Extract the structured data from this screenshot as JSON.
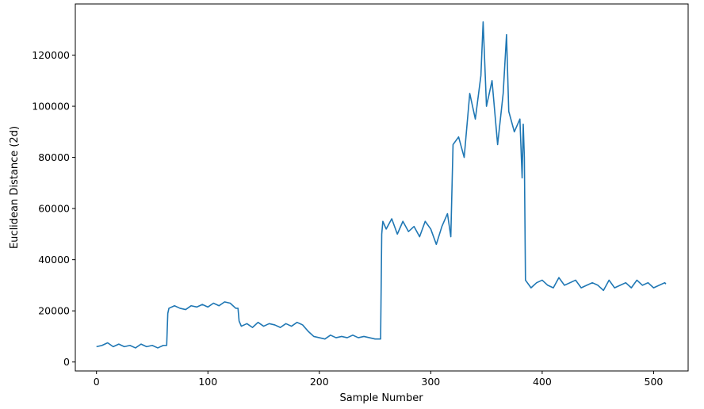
{
  "chart_data": {
    "type": "line",
    "title": "",
    "xlabel": "Sample Number",
    "ylabel": "Euclidean Distance (2d)",
    "xlim": [
      -19,
      531
    ],
    "ylim": [
      -3500,
      140000
    ],
    "xticks": [
      0,
      100,
      200,
      300,
      400,
      500
    ],
    "yticks": [
      0,
      20000,
      40000,
      60000,
      80000,
      100000,
      120000
    ],
    "grid": false,
    "legend": null,
    "series": [
      {
        "color": "#1f77b4",
        "x": [
          0,
          5,
          10,
          15,
          20,
          25,
          30,
          35,
          40,
          45,
          50,
          55,
          60,
          63,
          64,
          65,
          70,
          75,
          80,
          85,
          90,
          95,
          100,
          105,
          110,
          115,
          120,
          125,
          127,
          128,
          130,
          135,
          140,
          145,
          150,
          155,
          160,
          165,
          170,
          175,
          180,
          185,
          190,
          195,
          200,
          205,
          210,
          215,
          220,
          225,
          230,
          235,
          240,
          245,
          250,
          255,
          256,
          257,
          260,
          265,
          270,
          275,
          280,
          285,
          290,
          295,
          300,
          305,
          310,
          315,
          318,
          320,
          325,
          330,
          335,
          340,
          345,
          347,
          350,
          355,
          360,
          365,
          368,
          370,
          375,
          380,
          382,
          383,
          384,
          385,
          390,
          395,
          400,
          405,
          410,
          415,
          420,
          425,
          430,
          435,
          440,
          445,
          450,
          455,
          460,
          465,
          470,
          475,
          480,
          485,
          490,
          495,
          500,
          505,
          510,
          511
        ],
        "values": [
          6000,
          6500,
          7500,
          6000,
          7000,
          6000,
          6500,
          5500,
          7000,
          6000,
          6500,
          5500,
          6500,
          6500,
          19000,
          21000,
          22000,
          21000,
          20500,
          22000,
          21500,
          22500,
          21500,
          23000,
          22000,
          23500,
          23000,
          21000,
          21000,
          16000,
          14000,
          15000,
          13500,
          15500,
          14000,
          15000,
          14500,
          13500,
          15000,
          14000,
          15500,
          14500,
          12000,
          10000,
          9500,
          9000,
          10500,
          9500,
          10000,
          9500,
          10500,
          9500,
          10000,
          9500,
          9000,
          9000,
          50000,
          55000,
          52000,
          56000,
          50000,
          55000,
          51000,
          53000,
          49000,
          55000,
          52000,
          46000,
          53000,
          58000,
          49000,
          85000,
          88000,
          80000,
          105000,
          95000,
          112000,
          133000,
          100000,
          110000,
          85000,
          105000,
          128000,
          98000,
          90000,
          95000,
          72000,
          93000,
          80000,
          32000,
          29000,
          31000,
          32000,
          30000,
          29000,
          33000,
          30000,
          31000,
          32000,
          29000,
          30000,
          31000,
          30000,
          28000,
          32000,
          29000,
          30000,
          31000,
          29000,
          32000,
          30000,
          31000,
          29000,
          30000,
          31000,
          30500
        ]
      }
    ]
  }
}
